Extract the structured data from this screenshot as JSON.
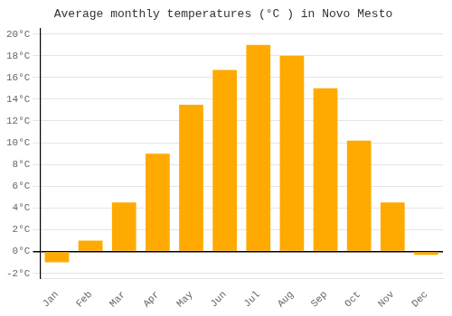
{
  "chart_data": {
    "type": "bar",
    "title": "Average monthly temperatures (°C ) in Novo Mesto",
    "categories": [
      "Jan",
      "Feb",
      "Mar",
      "Apr",
      "May",
      "Jun",
      "Jul",
      "Aug",
      "Sep",
      "Oct",
      "Nov",
      "Dec"
    ],
    "values": [
      -1.0,
      1.0,
      4.5,
      9.0,
      13.5,
      16.7,
      19.0,
      18.0,
      15.0,
      10.2,
      4.5,
      -0.3
    ],
    "color": "#FFAA00",
    "ylim": [
      -2.5,
      20.5
    ],
    "yticks": [
      {
        "value": -2,
        "label": "-2°C"
      },
      {
        "value": 0,
        "label": "0°C"
      },
      {
        "value": 2,
        "label": "2°C"
      },
      {
        "value": 4,
        "label": "4°C"
      },
      {
        "value": 6,
        "label": "6°C"
      },
      {
        "value": 8,
        "label": "8°C"
      },
      {
        "value": 10,
        "label": "10°C"
      },
      {
        "value": 12,
        "label": "12°C"
      },
      {
        "value": 14,
        "label": "14°C"
      },
      {
        "value": 16,
        "label": "16°C"
      },
      {
        "value": 18,
        "label": "18°C"
      },
      {
        "value": 20,
        "label": "20°C"
      }
    ],
    "grid": true
  }
}
